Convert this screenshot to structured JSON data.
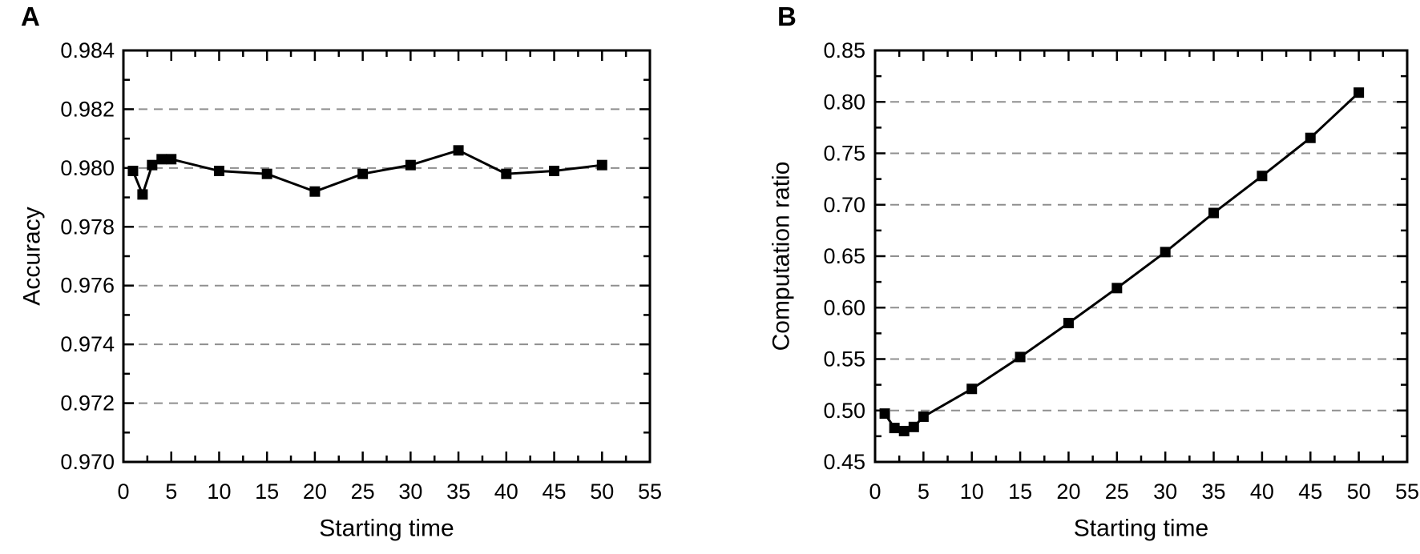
{
  "figure": {
    "background": "#ffffff"
  },
  "chart_data": [
    {
      "panel_label": "A",
      "type": "line",
      "title": "",
      "xlabel": "Starting time",
      "ylabel": "Accuracy",
      "x": [
        1,
        2,
        3,
        4,
        5,
        10,
        15,
        20,
        25,
        30,
        35,
        40,
        45,
        50
      ],
      "y": [
        0.9799,
        0.9791,
        0.9801,
        0.9803,
        0.9803,
        0.9799,
        0.9798,
        0.9792,
        0.9798,
        0.9801,
        0.9806,
        0.9798,
        0.9799,
        0.9801
      ],
      "xlim": [
        0,
        55
      ],
      "ylim": [
        0.97,
        0.984
      ],
      "x_ticks": {
        "values": [
          0,
          5,
          10,
          15,
          20,
          25,
          30,
          35,
          40,
          45,
          50,
          55
        ],
        "labels": [
          "0",
          "5",
          "10",
          "15",
          "20",
          "25",
          "30",
          "35",
          "40",
          "45",
          "50",
          "55"
        ]
      },
      "y_ticks": {
        "values": [
          0.97,
          0.972,
          0.974,
          0.976,
          0.978,
          0.98,
          0.982,
          0.984
        ],
        "labels": [
          "0.970",
          "0.972",
          "0.974",
          "0.976",
          "0.978",
          "0.980",
          "0.982",
          "0.984"
        ]
      },
      "gridlines": [
        0.972,
        0.974,
        0.976,
        0.978,
        0.98,
        0.982
      ],
      "grid_style": "dashed-horizontal",
      "legend": null,
      "marker": "filled-square",
      "colors": {
        "line": "#000000",
        "marker": "#000000",
        "axis": "#000000",
        "grid": "#8f8f8f"
      }
    },
    {
      "panel_label": "B",
      "type": "line",
      "title": "",
      "xlabel": "Starting time",
      "ylabel": "Computation ratio",
      "x": [
        1,
        2,
        3,
        4,
        5,
        10,
        15,
        20,
        25,
        30,
        35,
        40,
        45,
        50
      ],
      "y": [
        0.497,
        0.483,
        0.48,
        0.484,
        0.494,
        0.521,
        0.552,
        0.585,
        0.619,
        0.654,
        0.692,
        0.728,
        0.765,
        0.809
      ],
      "xlim": [
        0,
        55
      ],
      "ylim": [
        0.45,
        0.85
      ],
      "x_ticks": {
        "values": [
          0,
          5,
          10,
          15,
          20,
          25,
          30,
          35,
          40,
          45,
          50,
          55
        ],
        "labels": [
          "0",
          "5",
          "10",
          "15",
          "20",
          "25",
          "30",
          "35",
          "40",
          "45",
          "50",
          "55"
        ]
      },
      "y_ticks": {
        "values": [
          0.45,
          0.5,
          0.55,
          0.6,
          0.65,
          0.7,
          0.75,
          0.8,
          0.85
        ],
        "labels": [
          "0.45",
          "0.50",
          "0.55",
          "0.60",
          "0.65",
          "0.70",
          "0.75",
          "0.80",
          "0.85"
        ]
      },
      "gridlines": [
        0.5,
        0.55,
        0.6,
        0.65,
        0.7,
        0.75,
        0.8
      ],
      "grid_style": "dashed-horizontal",
      "legend": null,
      "marker": "filled-square",
      "colors": {
        "line": "#000000",
        "marker": "#000000",
        "axis": "#000000",
        "grid": "#8f8f8f"
      }
    }
  ]
}
